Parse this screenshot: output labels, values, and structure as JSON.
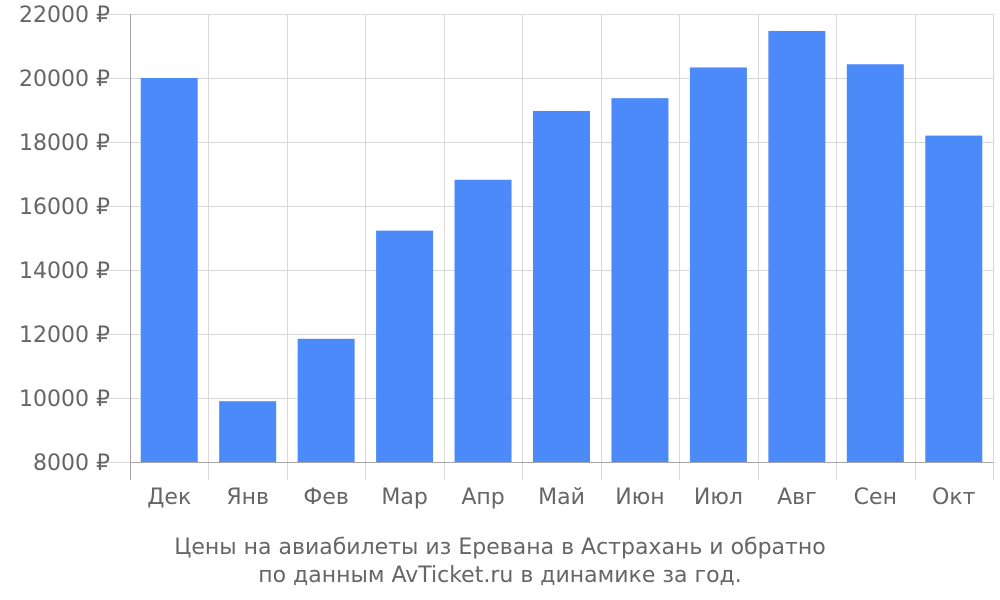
{
  "chart_data": {
    "type": "bar",
    "categories": [
      "Дек",
      "Янв",
      "Фев",
      "Мар",
      "Апр",
      "Май",
      "Июн",
      "Июл",
      "Авг",
      "Сен",
      "Окт"
    ],
    "values": [
      20000,
      9900,
      11850,
      15230,
      16820,
      18970,
      19370,
      20330,
      21470,
      20430,
      18200
    ],
    "ylim": [
      8000,
      22000
    ],
    "yticks": [
      8000,
      10000,
      12000,
      14000,
      16000,
      18000,
      20000,
      22000
    ],
    "ytick_labels": [
      "8000 ₽",
      "10000 ₽",
      "12000 ₽",
      "14000 ₽",
      "16000 ₽",
      "18000 ₽",
      "20000 ₽",
      "22000 ₽"
    ],
    "grid": true,
    "legend": "none",
    "bar_color": "#4d8af9",
    "grid_color": "#d9d9d9",
    "axis_color": "#a6a6a6",
    "text_color": "#666666"
  },
  "caption": {
    "line1": "Цены на авиабилеты из Еревана в Астрахань и обратно",
    "line2": "по данным AvTicket.ru в динамике за год."
  }
}
